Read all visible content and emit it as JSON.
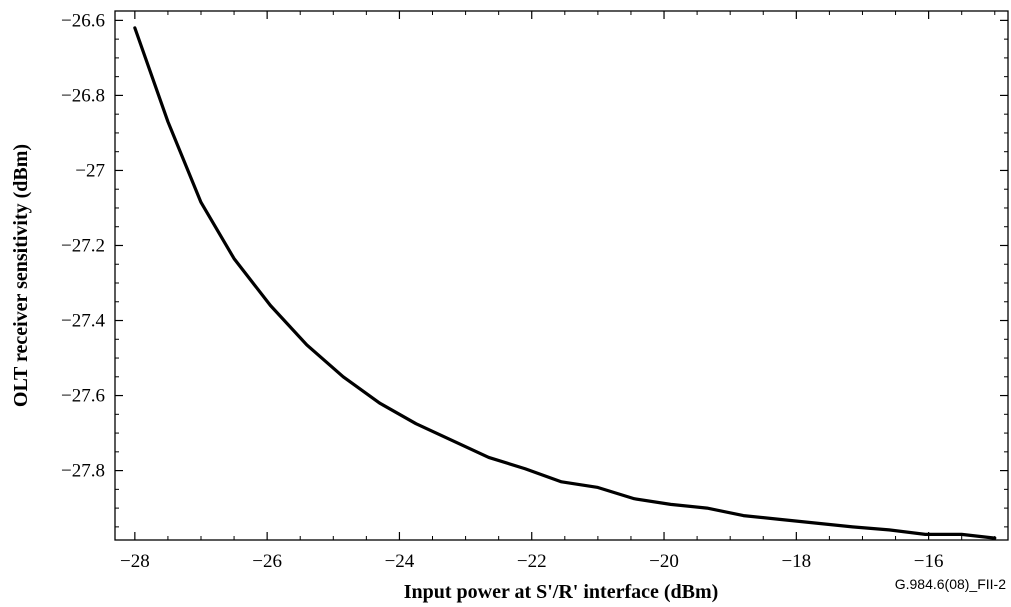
{
  "chart_data": {
    "type": "line",
    "title": "",
    "xlabel": "Input power at S'/R' interface (dBm)",
    "ylabel": "OLT receiver sensitivity (dBm)",
    "figure_id": "G.984.6(08)_FII-2",
    "xlim": [
      -28.3,
      -14.8
    ],
    "ylim": [
      -27.985,
      -26.575
    ],
    "x_ticks": [
      -28,
      -26,
      -24,
      -22,
      -20,
      -18,
      -16
    ],
    "y_ticks": [
      -26.6,
      -26.8,
      -27,
      -27.2,
      -27.4,
      -27.6,
      -27.8
    ],
    "x_tick_labels": [
      "−28",
      "−26",
      "−24",
      "−22",
      "−20",
      "−18",
      "−16"
    ],
    "y_tick_labels": [
      "−26.6",
      "−26.8",
      "−27",
      "−27.2",
      "−27.4",
      "−27.6",
      "−27.8"
    ],
    "grid": false,
    "line_color": "#000000",
    "series": [
      {
        "x": [
          -28.0,
          -27.5,
          -27.0,
          -26.5,
          -25.95,
          -25.4,
          -24.85,
          -24.3,
          -23.75,
          -23.2,
          -22.65,
          -22.1,
          -21.55,
          -21.0,
          -20.45,
          -19.9,
          -19.35,
          -18.8,
          -18.25,
          -17.7,
          -17.15,
          -16.6,
          -16.05,
          -15.5,
          -15.0
        ],
        "y": [
          -26.62,
          -26.87,
          -27.085,
          -27.235,
          -27.36,
          -27.465,
          -27.55,
          -27.62,
          -27.675,
          -27.72,
          -27.765,
          -27.795,
          -27.83,
          -27.845,
          -27.875,
          -27.89,
          -27.9,
          -27.92,
          -27.93,
          -27.94,
          -27.95,
          -27.958,
          -27.97,
          -27.97,
          -27.98
        ]
      }
    ]
  }
}
